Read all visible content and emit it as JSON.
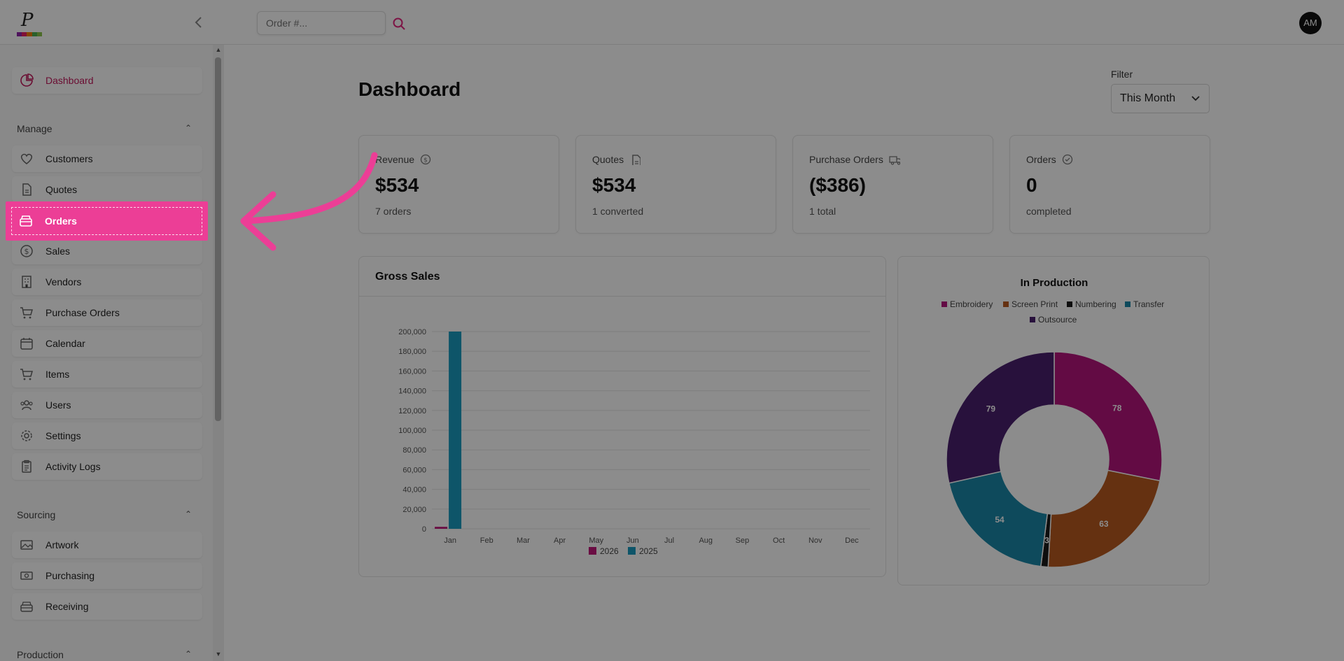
{
  "topbar": {
    "search_placeholder": "Order #...",
    "avatar_initials": "AM",
    "logo_letter": "P",
    "logo_colors": [
      "#8e24aa",
      "#e91e63",
      "#f57c00",
      "#4caf50",
      "#8bc34a"
    ]
  },
  "sidebar": {
    "dashboard_label": "Dashboard",
    "sections": {
      "manage": "Manage",
      "sourcing": "Sourcing",
      "production": "Production"
    },
    "manage_items": [
      {
        "label": "Customers",
        "icon": "heart-icon"
      },
      {
        "label": "Quotes",
        "icon": "document-icon"
      },
      {
        "label": "Orders",
        "icon": "box-icon"
      },
      {
        "label": "Sales",
        "icon": "dollar-icon"
      },
      {
        "label": "Vendors",
        "icon": "building-icon"
      },
      {
        "label": "Purchase Orders",
        "icon": "cart-icon"
      },
      {
        "label": "Calendar",
        "icon": "calendar-icon"
      },
      {
        "label": "Items",
        "icon": "cart-icon"
      },
      {
        "label": "Users",
        "icon": "users-icon"
      },
      {
        "label": "Settings",
        "icon": "gear-icon"
      },
      {
        "label": "Activity Logs",
        "icon": "clipboard-icon"
      }
    ],
    "sourcing_items": [
      {
        "label": "Artwork",
        "icon": "image-icon"
      },
      {
        "label": "Purchasing",
        "icon": "money-icon"
      },
      {
        "label": "Receiving",
        "icon": "tray-icon"
      }
    ]
  },
  "main": {
    "title": "Dashboard",
    "filter_label": "Filter",
    "filter_value": "This Month",
    "cards": [
      {
        "title": "Revenue",
        "icon": "dollar-circle-icon",
        "value": "$534",
        "sub": "7 orders"
      },
      {
        "title": "Quotes",
        "icon": "document-icon",
        "value": "$534",
        "sub": "1 converted"
      },
      {
        "title": "Purchase Orders",
        "icon": "truck-icon",
        "value": "($386)",
        "sub": "1 total"
      },
      {
        "title": "Orders",
        "icon": "check-circle-icon",
        "value": "0",
        "sub": "completed"
      }
    ],
    "gross_sales_title": "Gross Sales",
    "in_production_title": "In Production"
  },
  "accent": "#ec3e96",
  "chart_data": [
    {
      "type": "bar",
      "title": "Gross Sales",
      "categories": [
        "Jan",
        "Feb",
        "Mar",
        "Apr",
        "May",
        "Jun",
        "Jul",
        "Aug",
        "Sep",
        "Oct",
        "Nov",
        "Dec"
      ],
      "series": [
        {
          "name": "2026",
          "color": "#c2187a",
          "values": [
            2000,
            0,
            0,
            0,
            0,
            0,
            0,
            0,
            0,
            0,
            0,
            0
          ]
        },
        {
          "name": "2025",
          "color": "#1a9bbf",
          "values": [
            200000,
            0,
            0,
            0,
            0,
            0,
            0,
            0,
            0,
            0,
            0,
            0
          ]
        }
      ],
      "ylim": [
        0,
        200000
      ],
      "yticks": [
        "0",
        "20,000",
        "40,000",
        "60,000",
        "80,000",
        "100,000",
        "120,000",
        "140,000",
        "160,000",
        "180,000",
        "200,000"
      ],
      "grid": true,
      "legend": "bottom"
    },
    {
      "type": "pie",
      "title": "In Production",
      "donut": true,
      "labels": [
        "Embroidery",
        "Screen Print",
        "Numbering",
        "Transfer",
        "Outsource"
      ],
      "values": [
        78,
        63,
        3,
        54,
        79
      ],
      "colors": [
        "#b5157d",
        "#b85a1f",
        "#1a1a1a",
        "#1a88a8",
        "#4a1f6e"
      ],
      "legend": "top"
    }
  ]
}
